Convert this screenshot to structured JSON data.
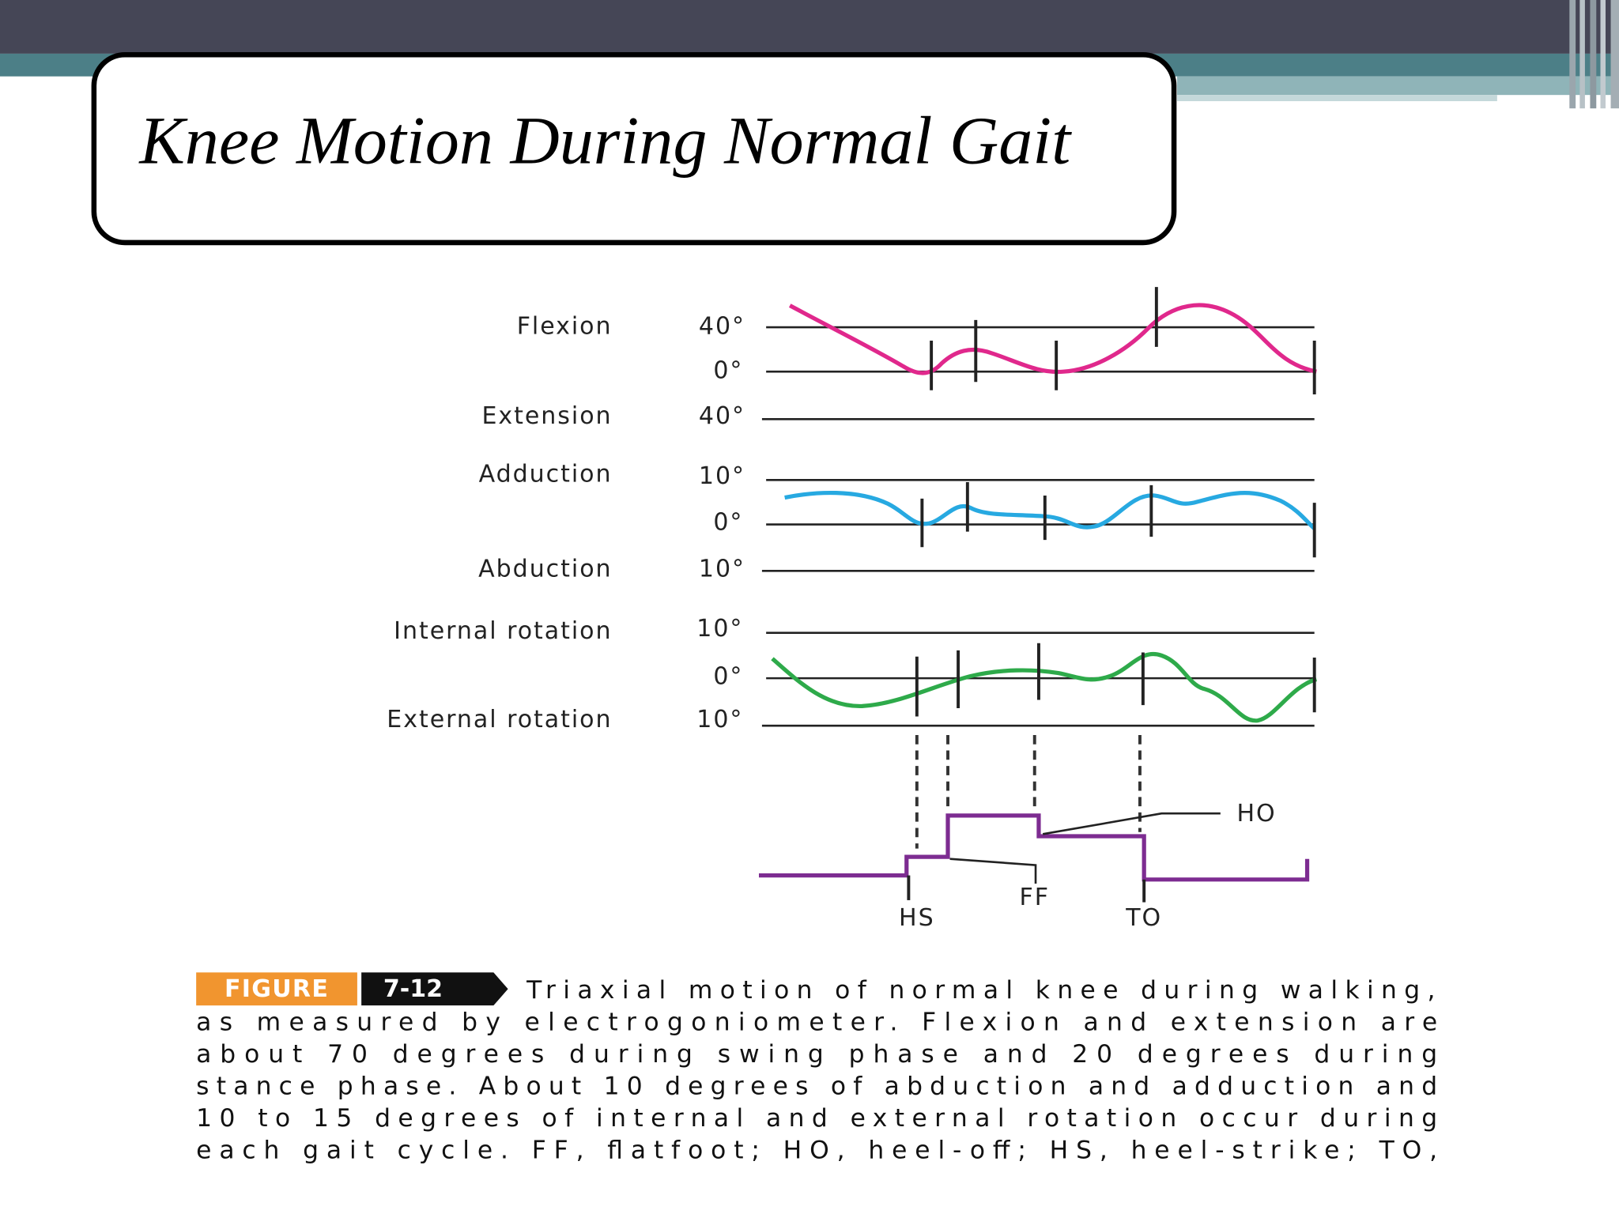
{
  "slide": {
    "title": "Knee Motion During Normal Gait"
  },
  "figure": {
    "row_labels": [
      "Flexion",
      "Extension",
      "Adduction",
      "Abduction",
      "Internal rotation",
      "External rotation"
    ],
    "axis_labels": [
      "40°",
      "0°",
      "40°",
      "10°",
      "0°",
      "10°",
      "10°",
      "0°",
      "10°"
    ],
    "event_labels": [
      "HO",
      "FF",
      "HS",
      "TO"
    ],
    "caption": {
      "figure_tag": "FIGURE",
      "figure_number": "7-12",
      "lines": [
        "Triaxial motion of normal knee during walking,",
        "as measured by electrogoniometer. Flexion and extension are",
        "about 70 degrees during swing phase and 20 degrees during",
        "stance phase. About 10 degrees of abduction and adduction and",
        "10 to 15 degrees of internal and external rotation occur during",
        "each gait cycle. FF, flatfoot; HO, heel-off; HS, heel-strike; TO,"
      ]
    }
  }
}
